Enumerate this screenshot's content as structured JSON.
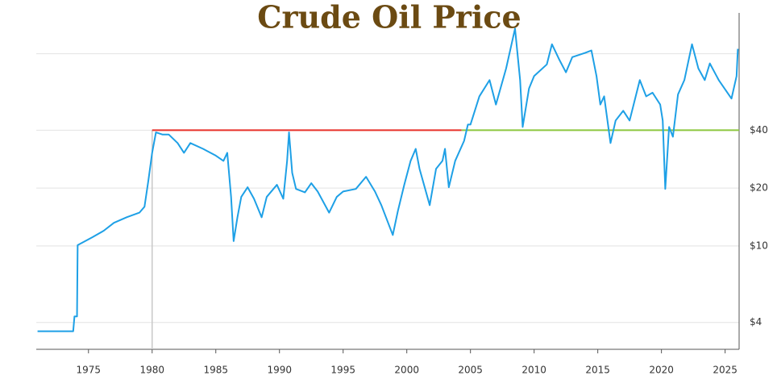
{
  "chart_data": {
    "type": "line",
    "title": "Crude Oil Price",
    "log_scale_y": true,
    "grid": true,
    "x": [
      1971.0,
      1973.8,
      1973.9,
      1974.1,
      1974.15,
      1975.3,
      1976.2,
      1977.0,
      1978.0,
      1979.0,
      1979.4,
      1979.7,
      1980.0,
      1980.3,
      1980.8,
      1981.3,
      1982.0,
      1982.5,
      1983.0,
      1984.0,
      1985.0,
      1985.6,
      1985.9,
      1986.2,
      1986.4,
      1986.7,
      1987.0,
      1987.5,
      1988.0,
      1988.6,
      1989.0,
      1989.8,
      1990.3,
      1990.6,
      1990.75,
      1991.0,
      1991.3,
      1992.0,
      1992.5,
      1993.0,
      1993.9,
      1994.5,
      1995.0,
      1996.0,
      1996.8,
      1997.5,
      1998.0,
      1998.9,
      1999.3,
      1999.8,
      2000.3,
      2000.7,
      2001.0,
      2001.8,
      2002.3,
      2002.8,
      2003.0,
      2003.3,
      2003.8,
      2004.5,
      2004.8,
      2005.0,
      2005.7,
      2006.5,
      2007.0,
      2007.8,
      2008.5,
      2008.9,
      2009.1,
      2009.6,
      2010.0,
      2011.0,
      2011.4,
      2012.0,
      2012.5,
      2013.0,
      2014.0,
      2014.5,
      2014.9,
      2015.2,
      2015.5,
      2016.0,
      2016.4,
      2017.0,
      2017.5,
      2018.3,
      2018.8,
      2019.3,
      2019.9,
      2020.1,
      2020.3,
      2020.6,
      2020.9,
      2021.3,
      2021.8,
      2022.4,
      2022.9,
      2023.4,
      2023.8,
      2024.5,
      2025.5,
      2025.9,
      2026.0
    ],
    "series": [
      {
        "name": "Crude Oil",
        "color": "#1ea0e6",
        "values": [
          3.6,
          3.6,
          4.3,
          4.3,
          10.1,
          11.1,
          12.0,
          13.2,
          14.1,
          14.9,
          16.0,
          21.8,
          30.5,
          39.0,
          38.0,
          38.0,
          34.3,
          30.5,
          34.3,
          32.0,
          29.5,
          27.7,
          30.5,
          18.0,
          10.6,
          14.1,
          18.0,
          20.2,
          17.6,
          14.1,
          18.0,
          20.8,
          17.6,
          27.7,
          39.0,
          24.0,
          19.8,
          19.0,
          21.2,
          19.2,
          14.9,
          18.0,
          19.2,
          19.8,
          22.9,
          19.2,
          16.3,
          11.4,
          15.2,
          20.8,
          27.7,
          32.0,
          25.2,
          16.3,
          25.2,
          27.7,
          32.0,
          20.2,
          27.7,
          35.2,
          42.8,
          42.8,
          60.0,
          72.9,
          54.4,
          83.8,
          135,
          72.9,
          41.6,
          66.0,
          76.5,
          88.0,
          112,
          92.5,
          80.0,
          96.0,
          101,
          104,
          76.5,
          54.4,
          60.0,
          34.3,
          44.9,
          50.5,
          44.9,
          72.9,
          60.0,
          62.7,
          54.4,
          44.9,
          19.8,
          41.6,
          37.0,
          61.4,
          72.9,
          112,
          83.8,
          72.9,
          89.0,
          72.9,
          58.4,
          76.5,
          106
        ]
      }
    ],
    "reference_lines": [
      {
        "y": 40,
        "x": [
          1980,
          2004.3
        ],
        "color": "#e8302a"
      },
      {
        "y": 40,
        "x": [
          2004.3,
          2026.1
        ],
        "color": "#8cc63f"
      }
    ],
    "vline": {
      "x": 1980,
      "y": [
        40,
        2.9
      ],
      "color": "#c8c8c8"
    },
    "xlim": [
      1970.9,
      2026.1
    ],
    "xticks": [
      1975,
      1980,
      1985,
      1990,
      1995,
      2000,
      2005,
      2010,
      2015,
      2020,
      2025
    ],
    "ylim": [
      2.9,
      163
    ],
    "yticks": [
      {
        "value": 4,
        "label": "$4"
      },
      {
        "value": 10,
        "label": "$10"
      },
      {
        "value": 20,
        "label": "$20"
      },
      {
        "value": 40,
        "label": "$40"
      },
      {
        "value": 100,
        "label": null
      }
    ]
  }
}
